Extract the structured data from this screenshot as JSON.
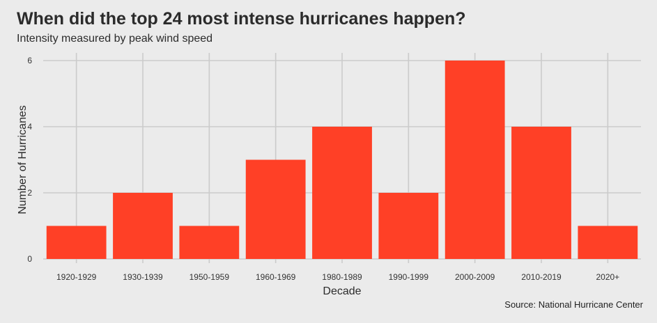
{
  "chart_data": {
    "type": "bar",
    "title": "When did the top 24 most intense hurricanes happen?",
    "subtitle": "Intensity measured by peak wind speed",
    "caption": "Source: National Hurricane Center",
    "xlabel": "Decade",
    "ylabel": "Number of Hurricanes",
    "categories": [
      "1920-1929",
      "1930-1939",
      "1950-1959",
      "1960-1969",
      "1980-1989",
      "1990-1999",
      "2000-2009",
      "2010-2019",
      "2020+"
    ],
    "values": [
      1,
      2,
      1,
      3,
      4,
      2,
      6,
      4,
      1
    ],
    "ylim": [
      0,
      6
    ],
    "yticks": [
      0,
      2,
      4,
      6
    ],
    "grid": true,
    "colors": {
      "bar": "#ff4026",
      "background": "#ebebeb",
      "grid": "#cbcbcb"
    }
  }
}
